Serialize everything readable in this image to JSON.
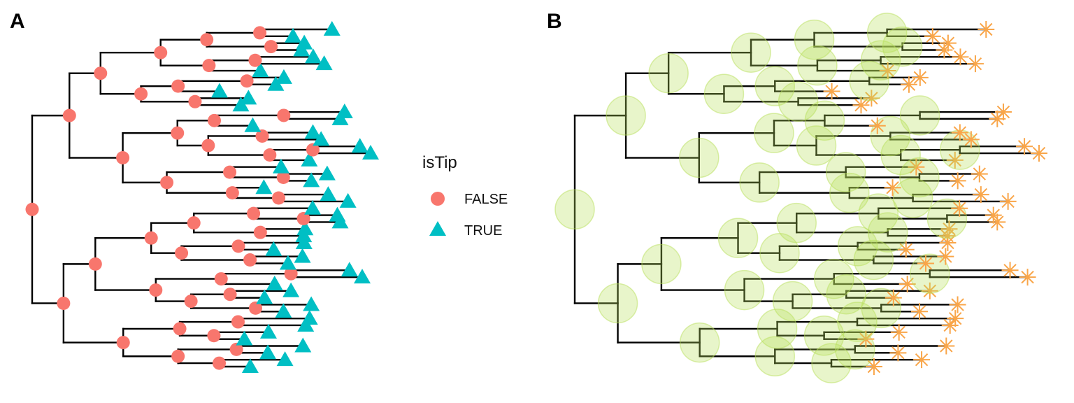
{
  "panels": [
    {
      "label": "A"
    },
    {
      "label": "B"
    }
  ],
  "legend": {
    "title": "isTip",
    "entries": [
      {
        "label": "FALSE",
        "shape": "circle",
        "color": "#F8766D"
      },
      {
        "label": "TRUE",
        "shape": "triangle",
        "color": "#00BFC4"
      }
    ]
  },
  "colors": {
    "internal_node": "#F8766D",
    "tip": "#00BFC4",
    "panel_b_circle": "#B8E05A",
    "panel_b_star": "#F9A64A",
    "branch": "#000000"
  }
}
